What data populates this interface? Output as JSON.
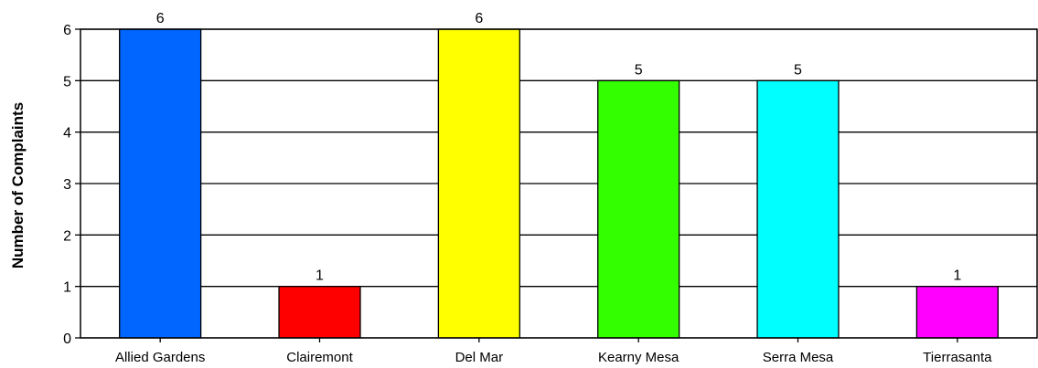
{
  "chart_data": {
    "type": "bar",
    "ylabel": "Number of Complaints",
    "xlabel": "",
    "ylim": [
      0,
      6
    ],
    "yticks": [
      "0",
      "1",
      "2",
      "3",
      "4",
      "5",
      "6"
    ],
    "grid": true,
    "categories": [
      "Allied Gardens",
      "Clairemont",
      "Del Mar",
      "Kearny Mesa",
      "Serra Mesa",
      "Tierrasanta"
    ],
    "values": [
      6,
      1,
      6,
      5,
      5,
      1
    ],
    "data_labels": [
      "6",
      "1",
      "6",
      "5",
      "5",
      "1"
    ],
    "colors": [
      "#0066ff",
      "#ff0000",
      "#ffff00",
      "#33ff00",
      "#00ffff",
      "#ff00ff"
    ]
  }
}
